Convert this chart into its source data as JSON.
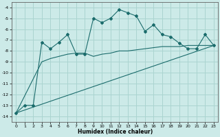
{
  "xlabel": "Humidex (Indice chaleur)",
  "background_color": "#cceae8",
  "grid_color": "#aad4d0",
  "line_color": "#1a6b6b",
  "xlim": [
    -0.5,
    23.5
  ],
  "ylim": [
    -14.5,
    -3.5
  ],
  "yticks": [
    -14,
    -13,
    -12,
    -11,
    -10,
    -9,
    -8,
    -7,
    -6,
    -5,
    -4
  ],
  "xticks": [
    0,
    1,
    2,
    3,
    4,
    5,
    6,
    7,
    8,
    9,
    10,
    11,
    12,
    13,
    14,
    15,
    16,
    17,
    18,
    19,
    20,
    21,
    22,
    23
  ],
  "line1_x": [
    0,
    1,
    2,
    3,
    4,
    5,
    6,
    7,
    8,
    9,
    10,
    11,
    12,
    13,
    14,
    15,
    16,
    17,
    18,
    19,
    20,
    21,
    22,
    23
  ],
  "line1_y": [
    -13.7,
    -13.0,
    -13.0,
    -7.2,
    -7.8,
    -7.2,
    -6.5,
    -8.3,
    -8.3,
    -5.0,
    -5.4,
    -5.0,
    -4.2,
    -4.5,
    -4.8,
    -6.2,
    -5.6,
    -6.5,
    -6.7,
    -7.3,
    -7.8,
    -7.8,
    -6.5,
    -7.5
  ],
  "line2_x": [
    0,
    3,
    4,
    5,
    6,
    7,
    8,
    9,
    10,
    11,
    12,
    13,
    14,
    15,
    16,
    17,
    18,
    19,
    20,
    21,
    22,
    23
  ],
  "line2_y": [
    -13.7,
    -9.0,
    -8.7,
    -8.5,
    -8.3,
    -8.2,
    -8.2,
    -8.5,
    -8.3,
    -8.2,
    -8.0,
    -8.0,
    -7.9,
    -7.8,
    -7.7,
    -7.6,
    -7.6,
    -7.6,
    -7.5,
    -7.5,
    -7.5,
    -7.5
  ],
  "line3_x": [
    0,
    23
  ],
  "line3_y": [
    -13.7,
    -7.5
  ]
}
